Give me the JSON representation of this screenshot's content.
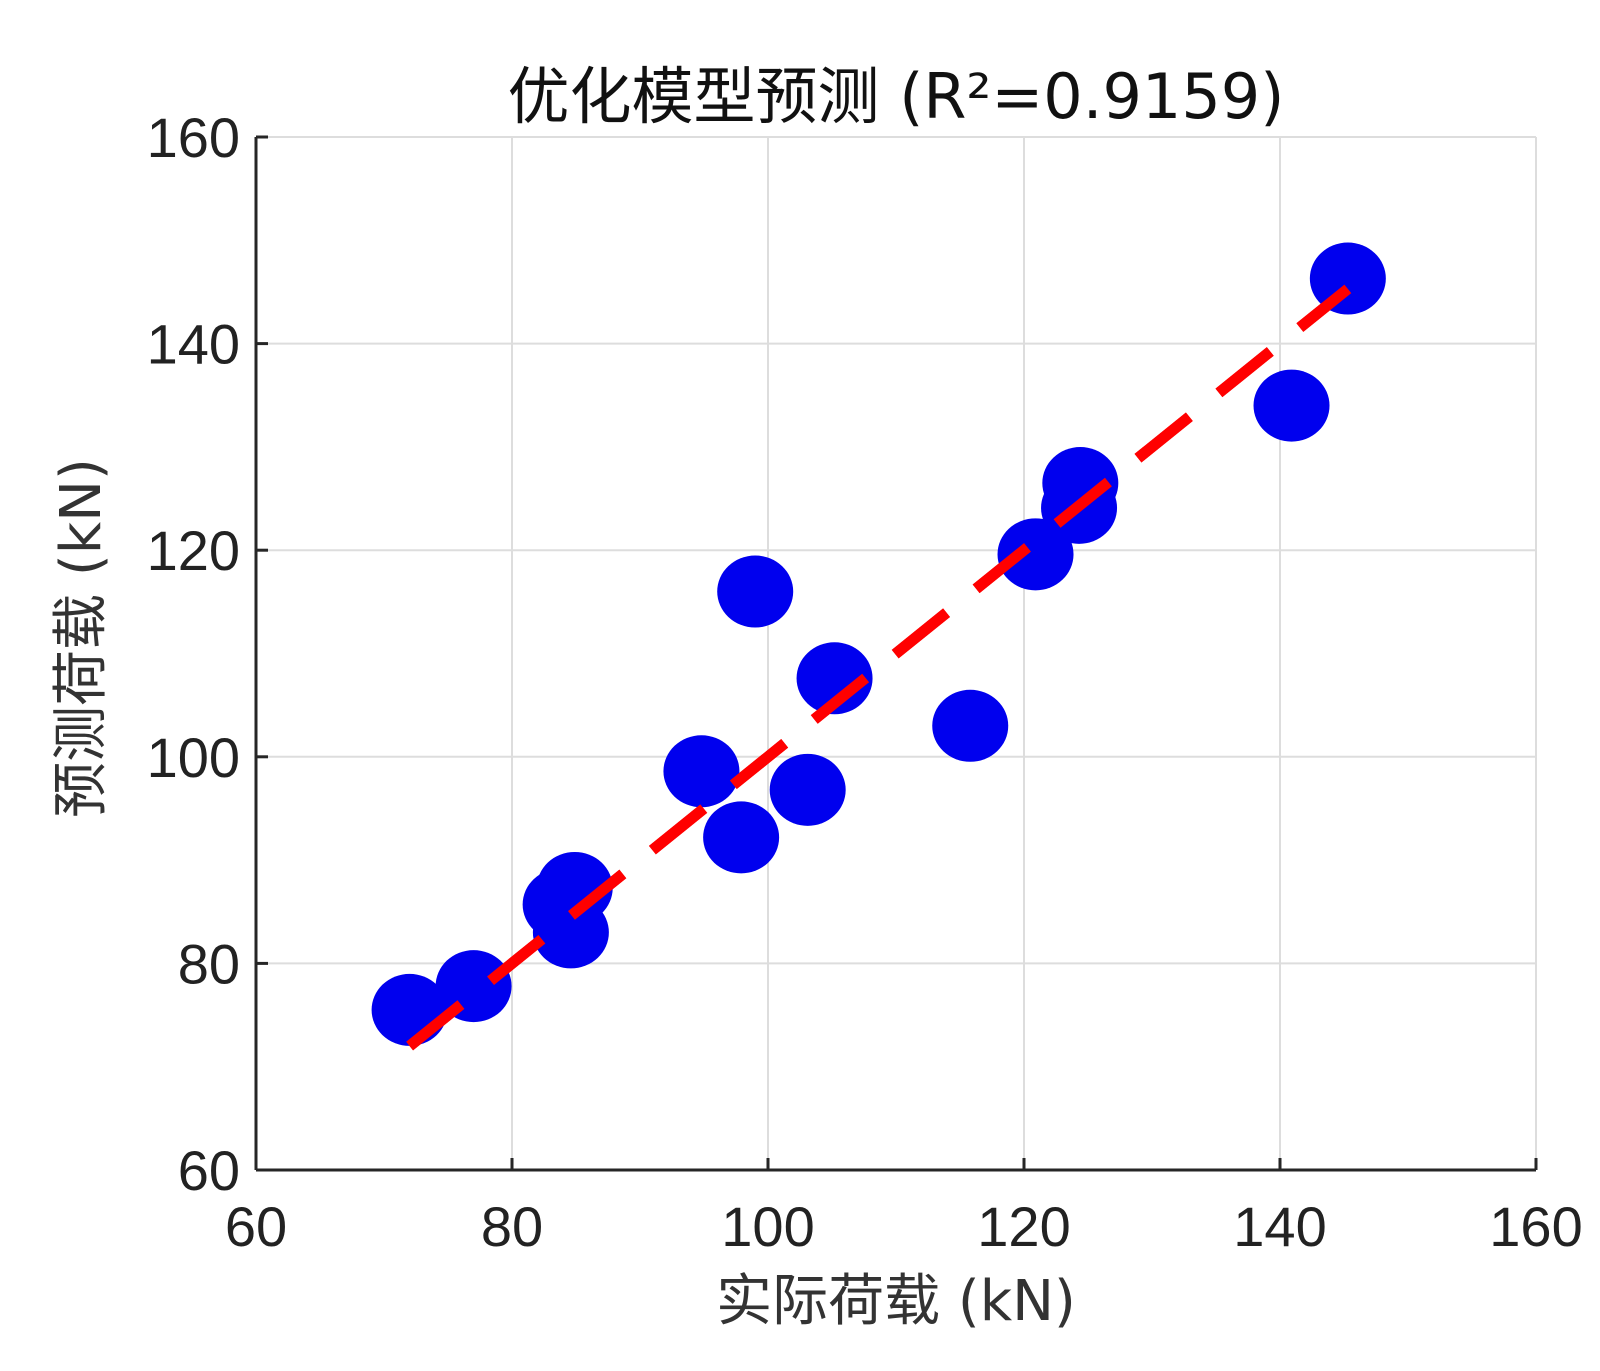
{
  "chart_data": {
    "type": "scatter",
    "title": "优化模型预测 (R²=0.9159)",
    "xlabel": "实际荷载 (kN)",
    "ylabel": "预测荷载 (kN)",
    "xlim": [
      60,
      160
    ],
    "ylim": [
      60,
      160
    ],
    "xticks": [
      "60",
      "80",
      "100",
      "120",
      "140",
      "160"
    ],
    "yticks": [
      "60",
      "80",
      "100",
      "120",
      "140",
      "160"
    ],
    "grid": true,
    "legend": "none",
    "series": [
      {
        "marker_color": "#0000ee",
        "points": [
          {
            "x": 72.0,
            "y": 75.5
          },
          {
            "x": 77.0,
            "y": 77.8
          },
          {
            "x": 83.8,
            "y": 85.7
          },
          {
            "x": 84.9,
            "y": 87.3
          },
          {
            "x": 84.6,
            "y": 83.0
          },
          {
            "x": 94.8,
            "y": 98.6
          },
          {
            "x": 97.9,
            "y": 92.2
          },
          {
            "x": 99.0,
            "y": 116.0
          },
          {
            "x": 103.1,
            "y": 96.8
          },
          {
            "x": 105.2,
            "y": 107.6
          },
          {
            "x": 115.8,
            "y": 103.0
          },
          {
            "x": 120.9,
            "y": 119.6
          },
          {
            "x": 124.3,
            "y": 124.1
          },
          {
            "x": 124.4,
            "y": 126.5
          },
          {
            "x": 140.9,
            "y": 134.0
          },
          {
            "x": 145.3,
            "y": 146.3
          }
        ]
      }
    ],
    "reference_line": {
      "color": "#ff0000",
      "style": "dashed",
      "from": {
        "x": 72.0,
        "y": 72.0
      },
      "to": {
        "x": 145.3,
        "y": 145.3
      }
    }
  }
}
